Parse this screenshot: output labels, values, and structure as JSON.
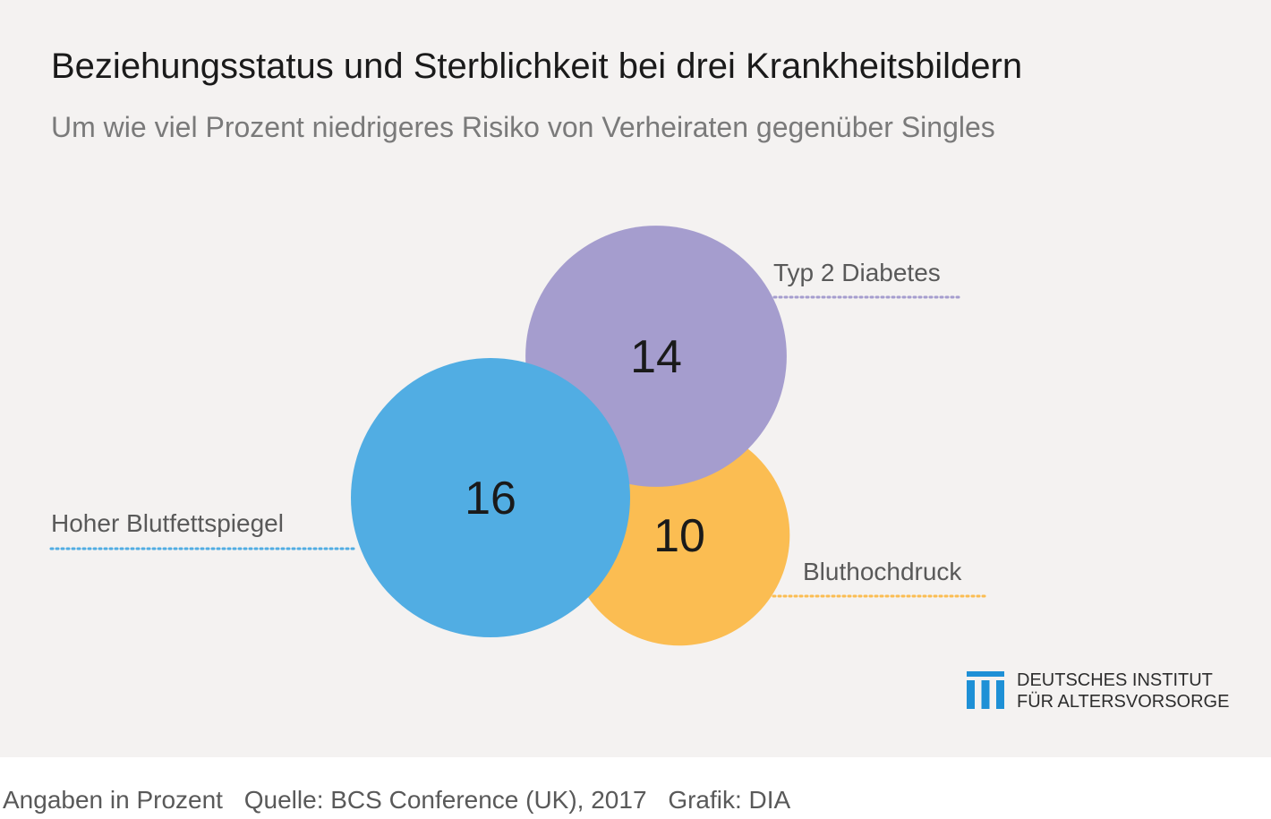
{
  "header": {
    "title": "Beziehungsstatus und Sterblichkeit bei drei Krankheitsbildern",
    "subtitle": "Um wie viel Prozent niedrigeres Risiko von Verheiraten gegenüber Singles"
  },
  "chart_data": {
    "type": "bubble",
    "title": "Beziehungsstatus und Sterblichkeit bei drei Krankheitsbildern",
    "subtitle": "Um wie viel Prozent niedrigeres Risiko von Verheiraten gegenüber Singles",
    "unit": "Prozent",
    "series": [
      {
        "name": "Hoher Blutfettspiegel",
        "value": 16,
        "color": "#51ade3"
      },
      {
        "name": "Typ 2 Diabetes",
        "value": 14,
        "color": "#a59dce"
      },
      {
        "name": "Bluthochdruck",
        "value": 10,
        "color": "#fbbd52"
      }
    ]
  },
  "logo": {
    "line1": "DEUTSCHES INSTITUT",
    "line2": "FÜR ALTERSVORSORGE",
    "color": "#1e90d6"
  },
  "footer": {
    "note": "Angaben in Prozent",
    "source": "Quelle: BCS Conference (UK), 2017",
    "credit": "Grafik: DIA"
  }
}
